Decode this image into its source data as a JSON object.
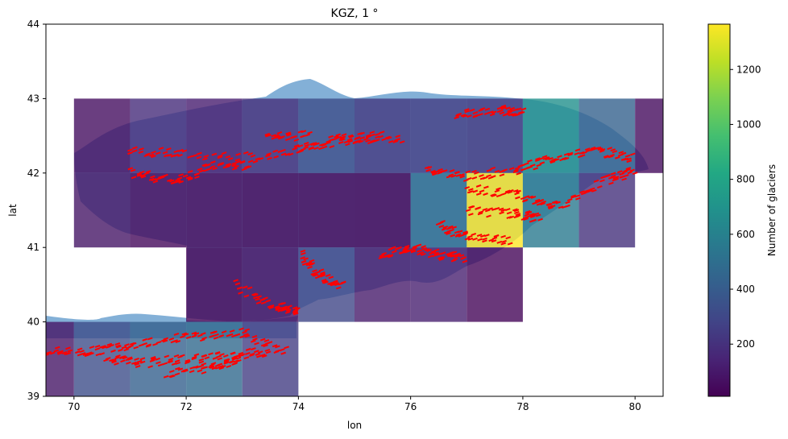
{
  "chart_data": {
    "type": "heatmap",
    "title": "KGZ, 1 °",
    "xlabel": "lon",
    "ylabel": "lat",
    "xlim": [
      69.5,
      80.5
    ],
    "ylim": [
      39,
      44
    ],
    "xticks": [
      70,
      72,
      74,
      76,
      78,
      80
    ],
    "yticks": [
      39,
      40,
      41,
      42,
      43,
      44
    ],
    "colorbar": {
      "label": "Number of glaciers",
      "min": 10,
      "max": 1365,
      "ticks": [
        200,
        400,
        600,
        800,
        1000,
        1200
      ]
    },
    "colors": {
      "country_fill": "#5a95c9",
      "glacier_points": "#ff0000"
    },
    "cells": [
      {
        "lon": 70,
        "lat": 42,
        "count": 60
      },
      {
        "lon": 71,
        "lat": 42,
        "count": 180
      },
      {
        "lon": 72,
        "lat": 42,
        "count": 120
      },
      {
        "lon": 73,
        "lat": 42,
        "count": 190
      },
      {
        "lon": 74,
        "lat": 42,
        "count": 330
      },
      {
        "lon": 75,
        "lat": 42,
        "count": 230
      },
      {
        "lon": 76,
        "lat": 42,
        "count": 250
      },
      {
        "lon": 77,
        "lat": 42,
        "count": 230
      },
      {
        "lon": 78,
        "lat": 42,
        "count": 680
      },
      {
        "lon": 79,
        "lat": 42,
        "count": 430
      },
      {
        "lon": 80,
        "lat": 42,
        "count": 50
      },
      {
        "lon": 70,
        "lat": 41,
        "count": 90
      },
      {
        "lon": 71,
        "lat": 41,
        "count": 40
      },
      {
        "lon": 72,
        "lat": 41,
        "count": 30
      },
      {
        "lon": 73,
        "lat": 41,
        "count": 20
      },
      {
        "lon": 74,
        "lat": 41,
        "count": 20
      },
      {
        "lon": 75,
        "lat": 41,
        "count": 15
      },
      {
        "lon": 76,
        "lat": 41,
        "count": 490
      },
      {
        "lon": 77,
        "lat": 41,
        "count": 1365
      },
      {
        "lon": 78,
        "lat": 41,
        "count": 560
      },
      {
        "lon": 79,
        "lat": 41,
        "count": 200
      },
      {
        "lon": 72,
        "lat": 40,
        "count": 15
      },
      {
        "lon": 73,
        "lat": 40,
        "count": 60
      },
      {
        "lon": 74,
        "lat": 40,
        "count": 290
      },
      {
        "lon": 75,
        "lat": 40,
        "count": 110
      },
      {
        "lon": 76,
        "lat": 40,
        "count": 130
      },
      {
        "lon": 77,
        "lat": 40,
        "count": 30
      },
      {
        "lon": 69.5,
        "lat": 39,
        "count": 90,
        "width": 0.5
      },
      {
        "lon": 70,
        "lat": 39,
        "count": 330
      },
      {
        "lon": 71,
        "lat": 39,
        "count": 420
      },
      {
        "lon": 72,
        "lat": 39,
        "count": 470
      },
      {
        "lon": 73,
        "lat": 39,
        "count": 250
      }
    ]
  }
}
